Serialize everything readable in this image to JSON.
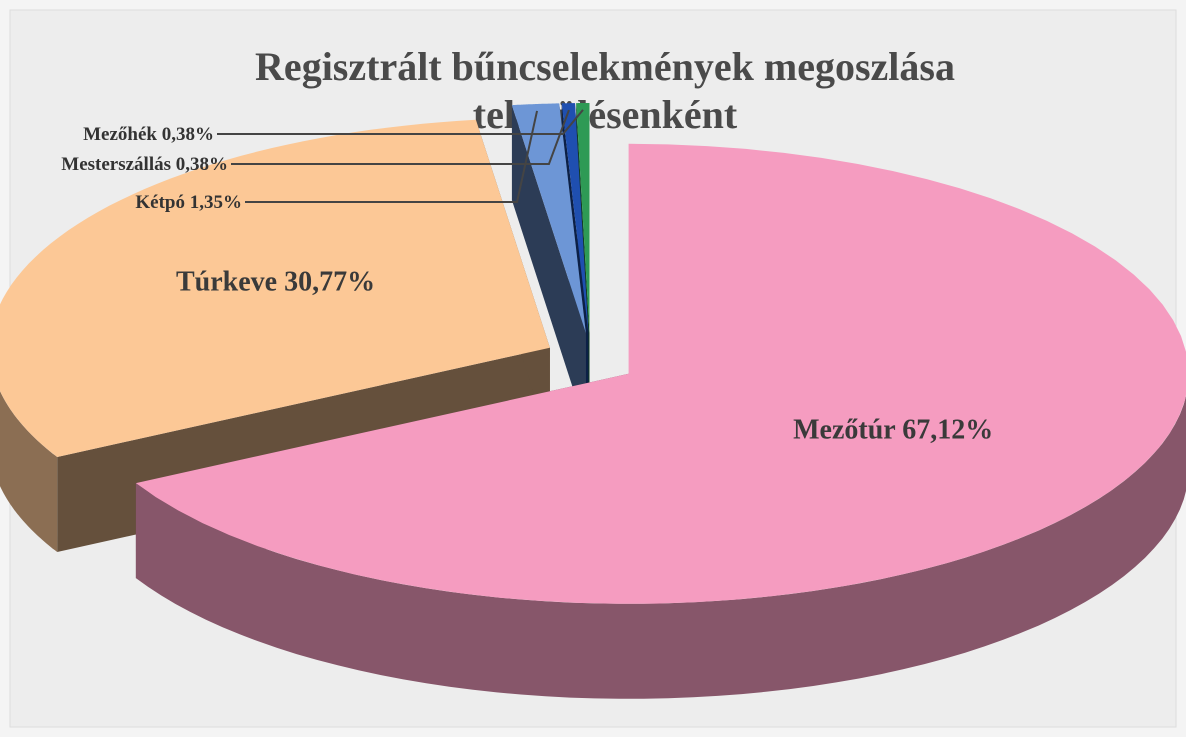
{
  "chart_data": {
    "type": "pie3d",
    "title": [
      "Regisztrált bűncselekmények megoszlása",
      "településenként"
    ],
    "categories": [
      "Mezőtúr",
      "Túrkeve",
      "Kétpó",
      "Mesterszállás",
      "Mezőhék"
    ],
    "values": [
      67.12,
      30.77,
      1.35,
      0.38,
      0.38
    ],
    "value_labels": [
      "Mezőtúr 67,12%",
      "Túrkeve 30,77%",
      "Kétpó 1,35%",
      "Mesterszállás 0,38%",
      "Mezőhék 0,38%"
    ],
    "colors": [
      "#f59cc0",
      "#fcc896",
      "#6d96d6",
      "#1f4fb0",
      "#2e9a55"
    ]
  }
}
